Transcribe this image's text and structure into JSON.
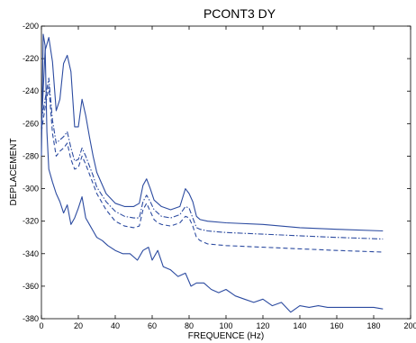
{
  "chart_data": {
    "type": "line",
    "title": "PCONT3   DY",
    "xlabel": "FREQUENCE (Hz)",
    "ylabel": "DEPLACEMENT",
    "xlim": [
      0,
      200
    ],
    "ylim": [
      -380,
      -200
    ],
    "xticks": [
      0,
      20,
      40,
      60,
      80,
      100,
      120,
      140,
      160,
      180,
      200
    ],
    "yticks": [
      -200,
      -220,
      -240,
      -260,
      -280,
      -300,
      -320,
      -340,
      -360,
      -380
    ],
    "grid": false,
    "line_color": "#2c4ba0",
    "series": [
      {
        "style": "solid",
        "x": [
          0,
          2,
          4,
          6,
          8,
          10,
          12,
          14,
          16,
          18,
          20,
          22,
          24,
          26,
          28,
          30,
          35,
          40,
          45,
          50,
          53,
          55,
          57,
          59,
          61,
          63,
          65,
          70,
          75,
          78,
          80,
          82,
          84,
          86,
          90,
          100,
          120,
          140,
          160,
          185
        ],
        "y": [
          -262,
          -215,
          -207,
          -222,
          -252,
          -245,
          -223,
          -218,
          -228,
          -262,
          -262,
          -245,
          -255,
          -268,
          -280,
          -290,
          -303,
          -309,
          -311,
          -311,
          -309,
          -298,
          -294,
          -300,
          -307,
          -309,
          -311,
          -313,
          -311,
          -300,
          -303,
          -308,
          -317,
          -319,
          -320,
          -321,
          -322,
          -324,
          -325,
          -326
        ]
      },
      {
        "style": "dashdot",
        "x": [
          0,
          2,
          4,
          6,
          8,
          10,
          12,
          14,
          16,
          18,
          20,
          22,
          24,
          26,
          28,
          30,
          35,
          40,
          45,
          50,
          53,
          55,
          57,
          59,
          61,
          63,
          65,
          70,
          75,
          78,
          80,
          82,
          84,
          86,
          90,
          100,
          120,
          140,
          160,
          185
        ],
        "y": [
          -258,
          -245,
          -232,
          -258,
          -272,
          -270,
          -268,
          -265,
          -275,
          -283,
          -282,
          -275,
          -280,
          -286,
          -292,
          -299,
          -308,
          -314,
          -317,
          -318,
          -318,
          -308,
          -304,
          -308,
          -313,
          -315,
          -317,
          -318,
          -316,
          -311,
          -312,
          -318,
          -324,
          -325,
          -326,
          -327,
          -328,
          -329,
          -330,
          -331
        ]
      },
      {
        "style": "dashed",
        "x": [
          0,
          2,
          4,
          6,
          8,
          10,
          12,
          14,
          16,
          18,
          20,
          22,
          24,
          26,
          28,
          30,
          35,
          40,
          45,
          50,
          53,
          55,
          57,
          59,
          61,
          63,
          65,
          70,
          75,
          78,
          80,
          82,
          84,
          86,
          90,
          100,
          120,
          140,
          160,
          185
        ],
        "y": [
          -265,
          -250,
          -237,
          -266,
          -280,
          -277,
          -275,
          -272,
          -282,
          -288,
          -287,
          -280,
          -285,
          -291,
          -297,
          -303,
          -313,
          -320,
          -323,
          -324,
          -323,
          -313,
          -309,
          -314,
          -319,
          -321,
          -322,
          -323,
          -321,
          -317,
          -318,
          -323,
          -330,
          -332,
          -334,
          -335,
          -336,
          -337,
          -338,
          -339
        ]
      },
      {
        "style": "solid",
        "x": [
          0,
          1,
          2,
          3,
          4,
          6,
          8,
          10,
          12,
          14,
          16,
          18,
          20,
          22,
          24,
          26,
          28,
          30,
          33,
          36,
          40,
          44,
          48,
          52,
          55,
          58,
          60,
          63,
          66,
          70,
          74,
          78,
          81,
          84,
          88,
          92,
          96,
          100,
          105,
          110,
          115,
          120,
          125,
          130,
          135,
          140,
          145,
          150,
          155,
          160,
          170,
          180,
          185
        ],
        "y": [
          -280,
          -205,
          -212,
          -265,
          -288,
          -296,
          -303,
          -308,
          -315,
          -310,
          -322,
          -318,
          -312,
          -305,
          -318,
          -322,
          -326,
          -330,
          -332,
          -335,
          -338,
          -340,
          -340,
          -344,
          -338,
          -336,
          -344,
          -338,
          -348,
          -350,
          -354,
          -352,
          -360,
          -358,
          -358,
          -362,
          -364,
          -362,
          -366,
          -368,
          -370,
          -368,
          -372,
          -370,
          -376,
          -372,
          -373,
          -372,
          -373,
          -373,
          -373,
          -373,
          -374
        ]
      }
    ]
  }
}
